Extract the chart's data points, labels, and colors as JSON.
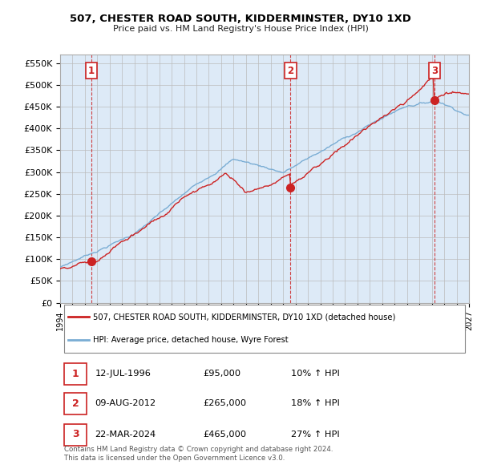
{
  "title": "507, CHESTER ROAD SOUTH, KIDDERMINSTER, DY10 1XD",
  "subtitle": "Price paid vs. HM Land Registry's House Price Index (HPI)",
  "ylim": [
    0,
    570000
  ],
  "yticks": [
    0,
    50000,
    100000,
    150000,
    200000,
    250000,
    300000,
    350000,
    400000,
    450000,
    500000,
    550000
  ],
  "ytick_labels": [
    "£0",
    "£50K",
    "£100K",
    "£150K",
    "£200K",
    "£250K",
    "£300K",
    "£350K",
    "£400K",
    "£450K",
    "£500K",
    "£550K"
  ],
  "hpi_color": "#7aadd4",
  "price_color": "#cc2222",
  "marker_color": "#cc2222",
  "bg_color": "#ddeaf7",
  "grid_color": "#bbbbbb",
  "transactions": [
    {
      "date_num": 1996.53,
      "price": 95000,
      "label": "1"
    },
    {
      "date_num": 2012.6,
      "price": 265000,
      "label": "2"
    },
    {
      "date_num": 2024.22,
      "price": 465000,
      "label": "3"
    }
  ],
  "legend_property_label": "507, CHESTER ROAD SOUTH, KIDDERMINSTER, DY10 1XD (detached house)",
  "legend_hpi_label": "HPI: Average price, detached house, Wyre Forest",
  "table_rows": [
    {
      "label": "1",
      "date": "12-JUL-1996",
      "price": "£95,000",
      "pct": "10% ↑ HPI"
    },
    {
      "label": "2",
      "date": "09-AUG-2012",
      "price": "£265,000",
      "pct": "18% ↑ HPI"
    },
    {
      "label": "3",
      "date": "22-MAR-2024",
      "price": "£465,000",
      "pct": "27% ↑ HPI"
    }
  ],
  "footnote": "Contains HM Land Registry data © Crown copyright and database right 2024.\nThis data is licensed under the Open Government Licence v3.0.",
  "xmin": 1994,
  "xmax": 2027
}
